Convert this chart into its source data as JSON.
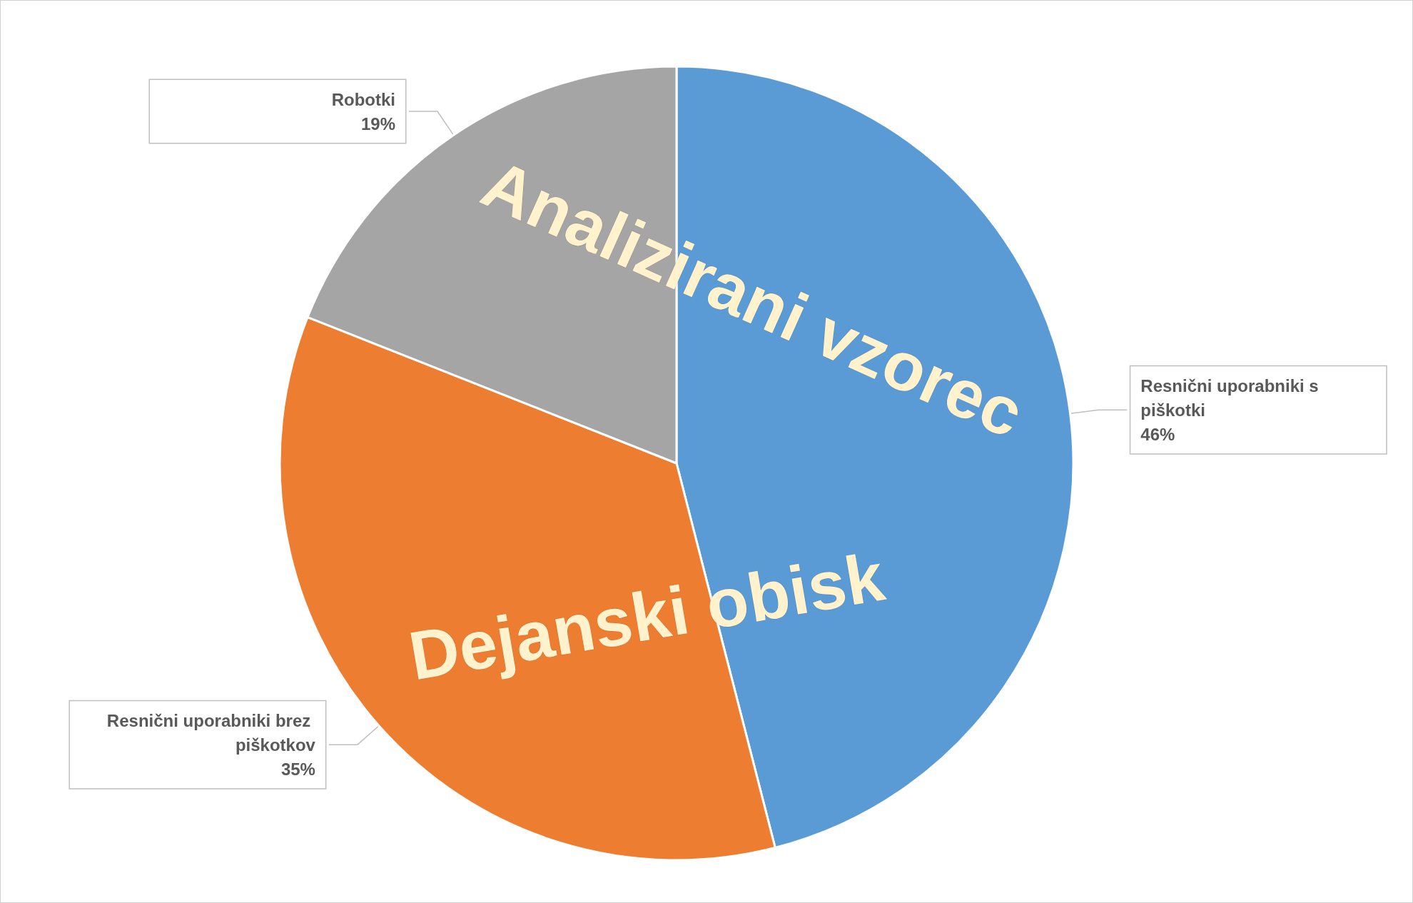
{
  "chart_data": {
    "type": "pie",
    "categories": [
      "Resnični uporabniki s piškotki",
      "Resnični uporabniki brez piškotkov",
      "Robotki"
    ],
    "values": [
      46,
      35,
      19
    ],
    "value_labels": [
      "46%",
      "35%",
      "19%"
    ],
    "colors": [
      "#5b9bd5",
      "#ed7d31",
      "#a5a5a5"
    ],
    "annotations": [
      "Analizirani vzorec",
      "Dejanski obisk"
    ]
  }
}
